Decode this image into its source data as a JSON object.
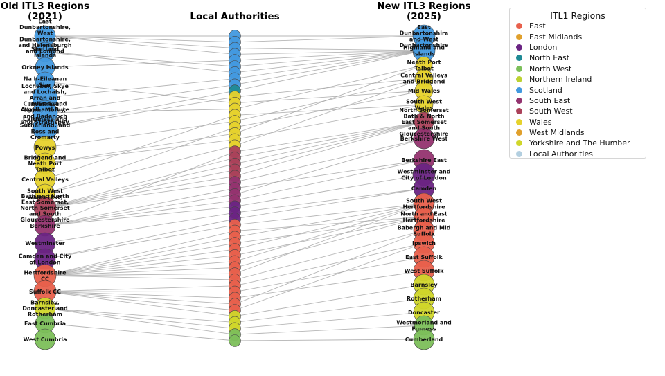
{
  "chart_data": {
    "type": "bipartite-flow",
    "titles": {
      "left": [
        "Old ITL3 Regions",
        "(2021)"
      ],
      "middle": [
        "Local Authorities"
      ],
      "right": [
        "New ITL3 Regions",
        "(2025)"
      ]
    },
    "legend": {
      "title": "ITL1 Regions",
      "placement": "top-right",
      "items": [
        {
          "name": "East",
          "color": "#e8604c"
        },
        {
          "name": "East Midlands",
          "color": "#e0a02c"
        },
        {
          "name": "London",
          "color": "#6a2483"
        },
        {
          "name": "North East",
          "color": "#1f8a95"
        },
        {
          "name": "North West",
          "color": "#7cbf5a"
        },
        {
          "name": "Northern Ireland",
          "color": "#bcd232"
        },
        {
          "name": "Scotland",
          "color": "#4299df"
        },
        {
          "name": "South East",
          "color": "#93336f"
        },
        {
          "name": "South West",
          "color": "#aa415a"
        },
        {
          "name": "Wales",
          "color": "#e6d22c"
        },
        {
          "name": "West Midlands",
          "color": "#e0a02c"
        },
        {
          "name": "Yorkshire and The Humber",
          "color": "#d0d62a"
        },
        {
          "name": "Local Authorities",
          "color": "#b3cfe0"
        }
      ]
    },
    "old_regions": [
      {
        "label": "East Dunbartonshire, West Dunbartonshire, and Helensburgh and Lomond",
        "region": "Scotland"
      },
      {
        "label": "Shetland Islands",
        "region": "Scotland"
      },
      {
        "label": "Orkney Islands",
        "region": "Scotland"
      },
      {
        "label": "Na h-Eileanan Siar",
        "region": "Scotland"
      },
      {
        "label": "Lochaber, Skye and Lochalsh, Arran and Cumbrae, and Argyll and Bute",
        "region": "Scotland"
      },
      {
        "label": "Inverness, Nairn, Moray, and Badenoch and Strathspey",
        "region": "Scotland"
      },
      {
        "label": "Caithness and Sutherland, and Ross and Cromarty",
        "region": "Scotland"
      },
      {
        "label": "Powys",
        "region": "Wales"
      },
      {
        "label": "Bridgend and Neath Port Talbot",
        "region": "Wales"
      },
      {
        "label": "Central Valleys",
        "region": "Wales"
      },
      {
        "label": "South West Wales (Ext)",
        "region": "Wales"
      },
      {
        "label": "Bath and North East Somerset, North Somerset and South Gloucestershire",
        "region": "South West"
      },
      {
        "label": "Berkshire",
        "region": "South East"
      },
      {
        "label": "Westminster",
        "region": "London"
      },
      {
        "label": "Camden and City of London",
        "region": "London"
      },
      {
        "label": "Hertfordshire CC",
        "region": "East"
      },
      {
        "label": "Suffolk CC",
        "region": "East"
      },
      {
        "label": "Barnsley, Doncaster and Rotherham",
        "region": "Yorkshire and The Humber"
      },
      {
        "label": "East Cumbria",
        "region": "North West"
      },
      {
        "label": "West Cumbria",
        "region": "North West"
      }
    ],
    "local_authorities_by_region": [
      {
        "region": "Scotland",
        "count": 9
      },
      {
        "region": "North East",
        "count": 1
      },
      {
        "region": "Wales",
        "count": 9
      },
      {
        "region": "South West",
        "count": 5
      },
      {
        "region": "South East",
        "count": 4
      },
      {
        "region": "London",
        "count": 3
      },
      {
        "region": "East",
        "count": 15
      },
      {
        "region": "Yorkshire and The Humber",
        "count": 3
      },
      {
        "region": "North West",
        "count": 2
      }
    ],
    "new_regions": [
      {
        "label": "East Dunbartonshire and West Dunbartonshire",
        "region": "Scotland"
      },
      {
        "label": "Highland and Islands",
        "region": "Scotland"
      },
      {
        "label": "Neath Port Talbot",
        "region": "Wales"
      },
      {
        "label": "Central Valleys and Bridgend",
        "region": "Wales"
      },
      {
        "label": "Mid Wales",
        "region": "Wales"
      },
      {
        "label": "South West Wales",
        "region": "Wales"
      },
      {
        "label": "North Somerset Bath & North East Somerset and South Gloucestershire",
        "region": "South West"
      },
      {
        "label": "Berkshire West",
        "region": "South East"
      },
      {
        "label": "Berkshire East",
        "region": "South East"
      },
      {
        "label": "Westminster and City of London",
        "region": "London"
      },
      {
        "label": "Camden",
        "region": "London"
      },
      {
        "label": "South West Hertfordshire",
        "region": "East"
      },
      {
        "label": "North and East Hertfordshire",
        "region": "East"
      },
      {
        "label": "Babergh and Mid Suffolk",
        "region": "East"
      },
      {
        "label": "Ipswich",
        "region": "East"
      },
      {
        "label": "East Suffolk",
        "region": "East"
      },
      {
        "label": "West Suffolk",
        "region": "East"
      },
      {
        "label": "Barnsley",
        "region": "Yorkshire and The Humber"
      },
      {
        "label": "Rotherham",
        "region": "Yorkshire and The Humber"
      },
      {
        "label": "Doncaster",
        "region": "Yorkshire and The Humber"
      },
      {
        "label": "Westmorland and Furness",
        "region": "North West"
      },
      {
        "label": "Cumberland",
        "region": "North West"
      }
    ]
  }
}
